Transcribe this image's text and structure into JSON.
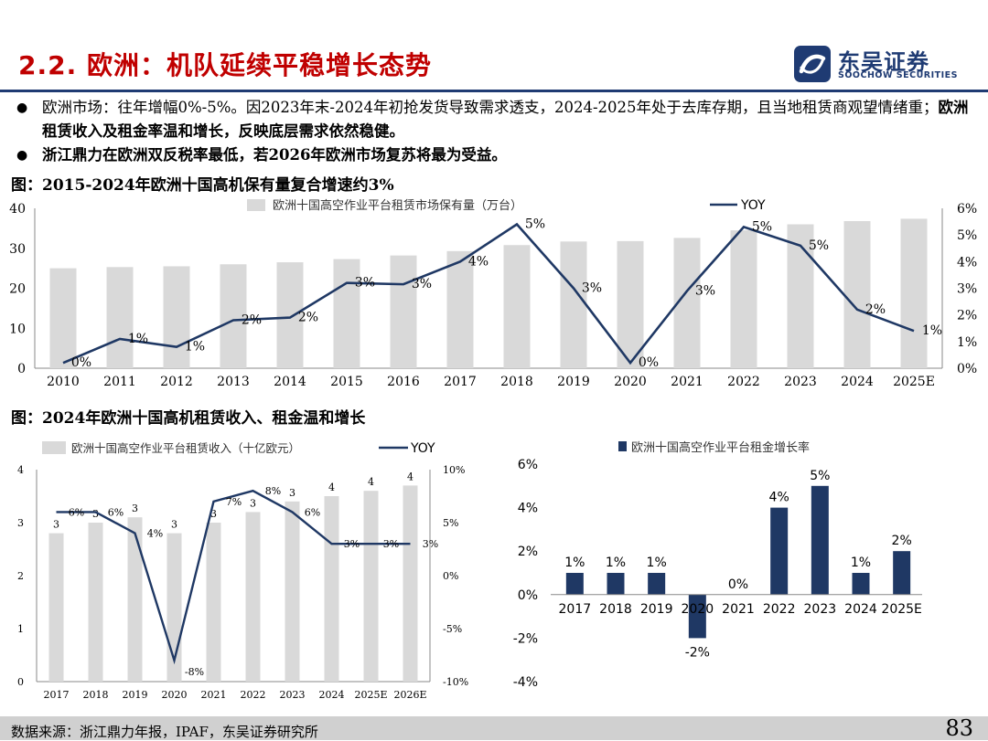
{
  "header": {
    "title": "2.2. 欧洲：机队延续平稳增长态势",
    "logo_cn": "东吴证券",
    "logo_en": "SOOCHOW SECURITIES"
  },
  "bullets": [
    {
      "normal": "欧洲市场：往年增幅0%-5%。因2023年末-2024年初抢发货导致需求透支，2024-2025年处于去库存期，且当地租赁商观望情绪重；",
      "bold": "欧洲租赁收入及租金率温和增长，反映底层需求依然稳健。"
    },
    {
      "normal": "",
      "bold": "浙江鼎力在欧洲双反税率最低，若2026年欧洲市场复苏将最为受益。"
    }
  ],
  "figures": {
    "fig1_title": "图：2015-2024年欧洲十国高机保有量复合增速约3%",
    "fig2_title": "图：2024年欧洲十国高机租赁收入、租金温和增长"
  },
  "footer": {
    "source": "数据来源：浙江鼎力年报，IPAF，东吴证券研究所",
    "page_number": "83"
  },
  "colors": {
    "title_red": "#c00000",
    "navy": "#1f3b73",
    "bar_gray": "#d9d9d9",
    "line_navy": "#1f3864",
    "bar_navy": "#1f3864"
  },
  "chart_data": [
    {
      "type": "bar",
      "categories": [
        "2010",
        "2011",
        "2012",
        "2013",
        "2014",
        "2015",
        "2016",
        "2017",
        "2018",
        "2019",
        "2020",
        "2021",
        "2022",
        "2023",
        "2024",
        "2025E"
      ],
      "series": [
        {
          "name": "欧洲十国高空作业平台租赁市场保有量（万台）",
          "kind": "bar",
          "axis": "left",
          "values": [
            25,
            25.3,
            25.5,
            26,
            26.5,
            27.3,
            28.2,
            29.3,
            30.8,
            31.7,
            31.8,
            32.6,
            34.5,
            36,
            36.8,
            37.4
          ]
        },
        {
          "name": "YOY",
          "kind": "line",
          "axis": "right",
          "values": [
            0.2,
            1.1,
            0.8,
            1.8,
            1.9,
            3.2,
            3.15,
            4.0,
            5.4,
            3.0,
            0.2,
            2.9,
            5.3,
            4.6,
            2.2,
            1.4
          ],
          "labels": [
            "0%",
            "1%",
            "1%",
            "2%",
            "2%",
            "3%",
            "3%",
            "4%",
            "5%",
            "3%",
            "0%",
            "3%",
            "5%",
            "5%",
            "2%",
            "1%"
          ]
        }
      ],
      "ylim": [
        0,
        40
      ],
      "yticks": [
        "0",
        "10",
        "20",
        "30",
        "40"
      ],
      "y2lim": [
        0,
        6
      ],
      "y2ticks": [
        "0%",
        "1%",
        "2%",
        "3%",
        "4%",
        "5%",
        "6%"
      ],
      "legend": "top"
    },
    {
      "type": "bar",
      "categories": [
        "2017",
        "2018",
        "2019",
        "2020",
        "2021",
        "2022",
        "2023",
        "2024",
        "2025E",
        "2026E"
      ],
      "series": [
        {
          "name": "欧洲十国高空作业平台租赁收入（十亿欧元）",
          "kind": "bar",
          "axis": "left",
          "values": [
            2.8,
            3.0,
            3.1,
            2.8,
            3.0,
            3.2,
            3.4,
            3.5,
            3.6,
            3.7
          ],
          "labels": [
            "3",
            "3",
            "3",
            "3",
            "3",
            "3",
            "3",
            "4",
            "4",
            "4"
          ]
        },
        {
          "name": "YOY",
          "kind": "line",
          "axis": "right",
          "values": [
            6,
            6,
            4,
            -8,
            7,
            8,
            6,
            3,
            3,
            3
          ],
          "labels": [
            "6%",
            "6%",
            "4%",
            "-8%",
            "7%",
            "8%",
            "6%",
            "3%",
            "3%",
            "3%"
          ]
        }
      ],
      "ylim": [
        0,
        4
      ],
      "yticks": [
        "0",
        "1",
        "2",
        "3",
        "4"
      ],
      "y2lim": [
        -10,
        10
      ],
      "y2ticks": [
        "-10%",
        "-5%",
        "0%",
        "5%",
        "10%"
      ],
      "legend": "top"
    },
    {
      "type": "bar",
      "categories": [
        "2017",
        "2018",
        "2019",
        "2020",
        "2021",
        "2022",
        "2023",
        "2024",
        "2025E"
      ],
      "series": [
        {
          "name": "欧洲十国高空作业平台租金增长率",
          "kind": "bar",
          "values": [
            1,
            1,
            1,
            -2,
            0,
            4,
            5,
            1,
            2
          ],
          "labels": [
            "1%",
            "1%",
            "1%",
            "-2%",
            "0%",
            "4%",
            "5%",
            "1%",
            "2%"
          ]
        }
      ],
      "ylim": [
        -4,
        6
      ],
      "yticks": [
        "-4%",
        "-2%",
        "0%",
        "2%",
        "4%",
        "6%"
      ],
      "legend": "top"
    }
  ]
}
